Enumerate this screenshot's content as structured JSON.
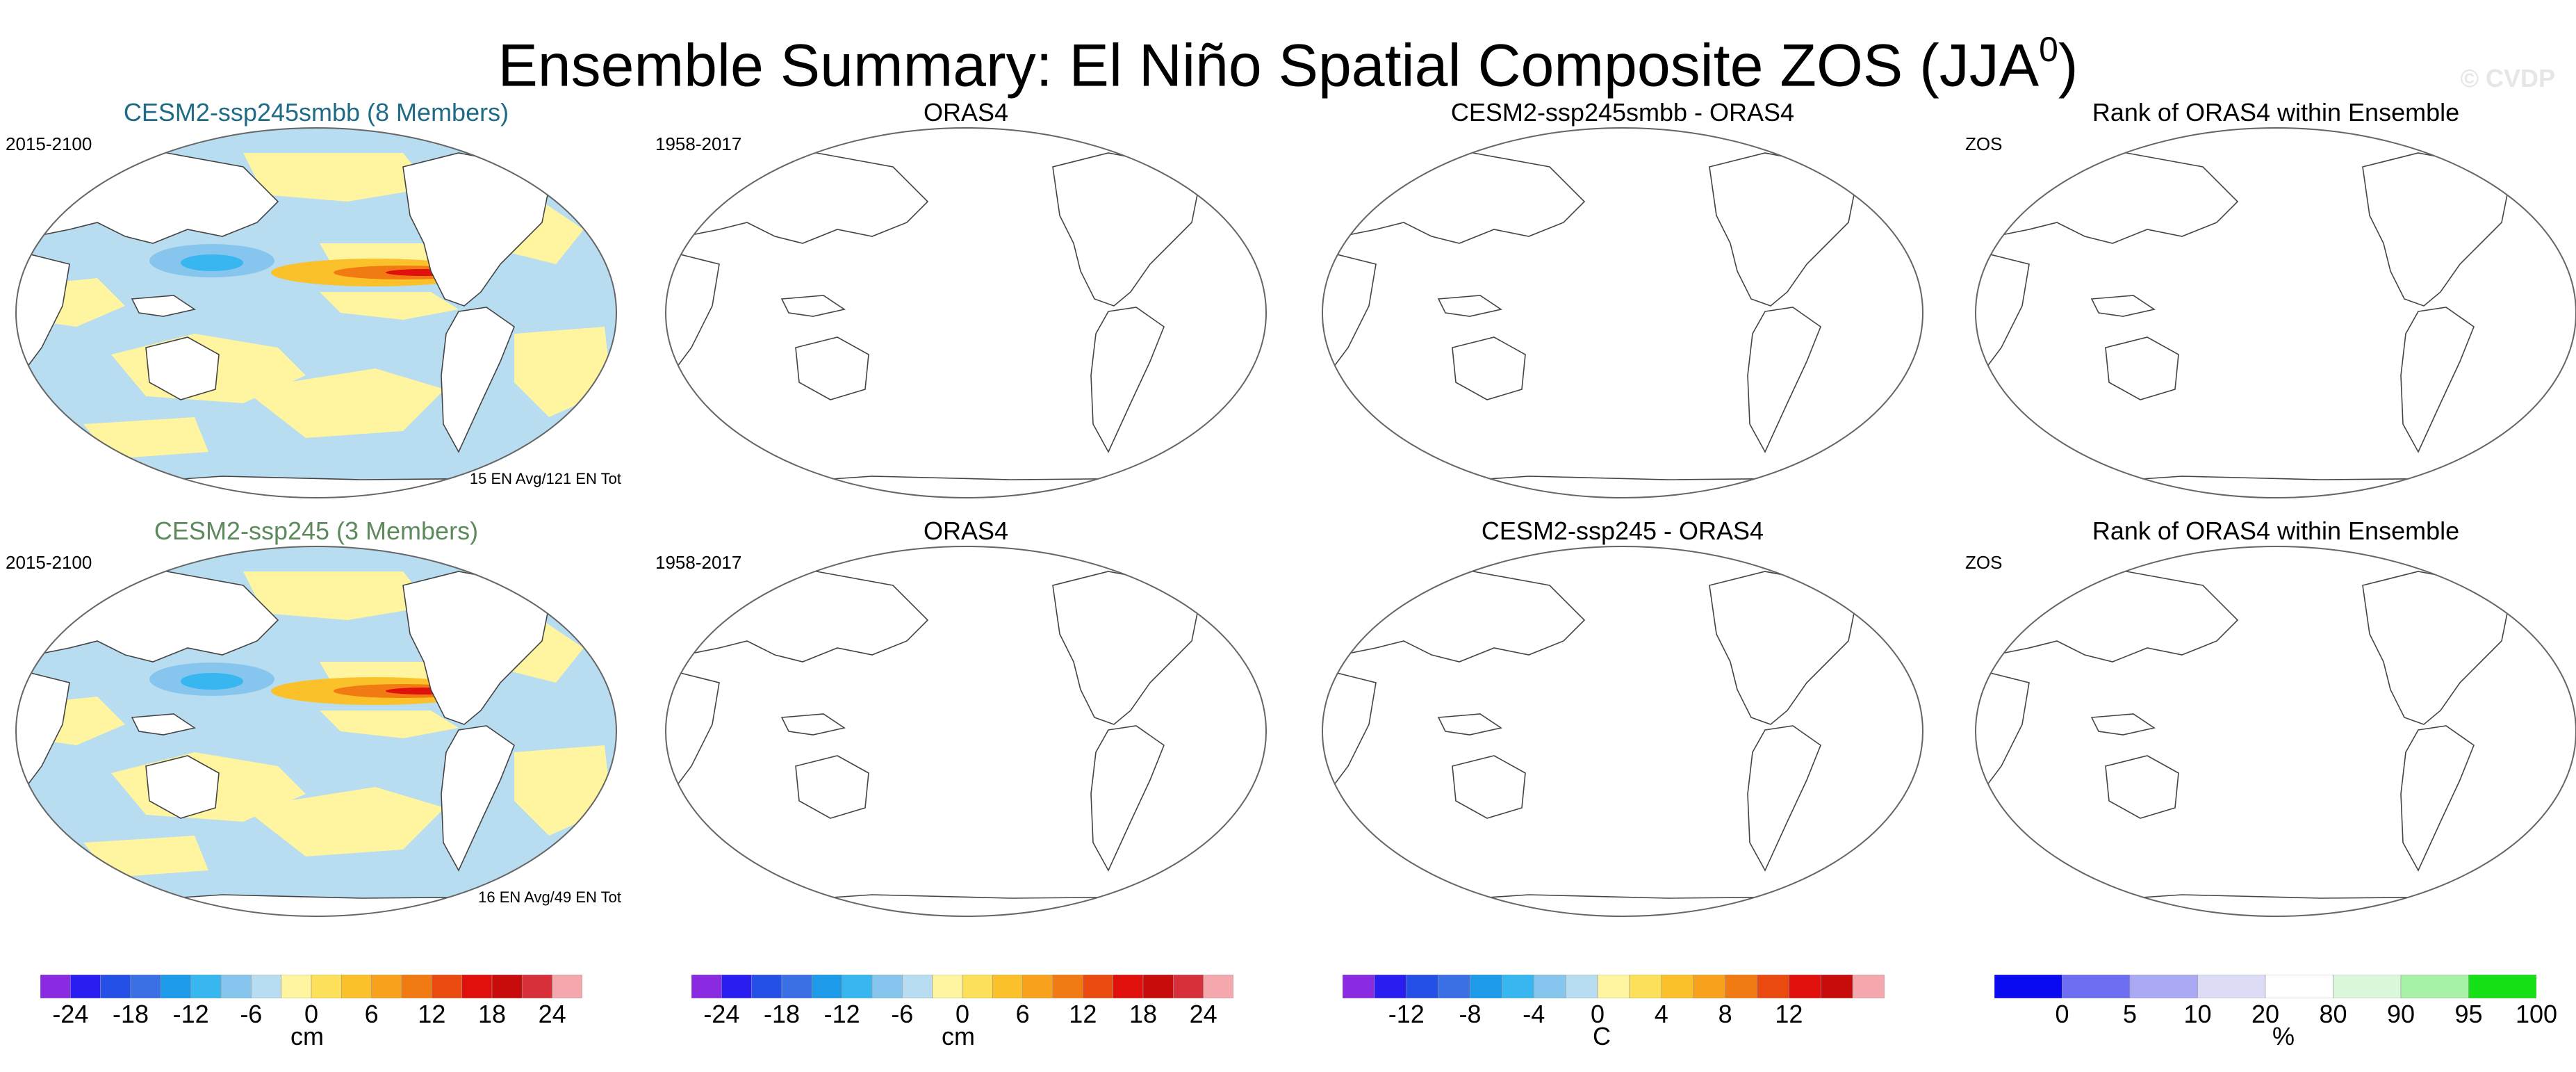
{
  "title": {
    "main": "Ensemble Summary: El Niño Spatial Composite ZOS (JJA",
    "sup": "0",
    "close": ")"
  },
  "watermark": "© CVDP",
  "rows": [
    {
      "panels": [
        {
          "title": "CESM2-ssp245smbb (8 Members)",
          "title_color": "#1f6b86",
          "left_label": "2015-2100",
          "bottom_label": "15 EN Avg/121 EN Tot",
          "filled": true
        },
        {
          "title": "ORAS4",
          "title_color": "#000000",
          "left_label": "1958-2017",
          "bottom_label": "",
          "filled": false
        },
        {
          "title": "CESM2-ssp245smbb - ORAS4",
          "title_color": "#000000",
          "left_label": "",
          "bottom_label": "",
          "filled": false
        },
        {
          "title": "Rank of ORAS4 within Ensemble",
          "title_color": "#000000",
          "left_label": "ZOS",
          "bottom_label": "",
          "filled": false
        }
      ]
    },
    {
      "panels": [
        {
          "title": "CESM2-ssp245 (3 Members)",
          "title_color": "#5d8a5d",
          "left_label": "2015-2100",
          "bottom_label": "16 EN Avg/49 EN Tot",
          "filled": true
        },
        {
          "title": "ORAS4",
          "title_color": "#000000",
          "left_label": "1958-2017",
          "bottom_label": "",
          "filled": false
        },
        {
          "title": "CESM2-ssp245 - ORAS4",
          "title_color": "#000000",
          "left_label": "",
          "bottom_label": "",
          "filled": false
        },
        {
          "title": "Rank of ORAS4 within Ensemble",
          "title_color": "#000000",
          "left_label": "ZOS",
          "bottom_label": "",
          "filled": false
        }
      ]
    }
  ],
  "colorbars": [
    {
      "unit": "cm",
      "ticks": [
        "-24",
        "-18",
        "-12",
        "-6",
        "0",
        "6",
        "12",
        "18",
        "24"
      ],
      "colors": [
        "#8a2be2",
        "#2a1df0",
        "#2450e8",
        "#3b6fe6",
        "#1e9be8",
        "#38b6f0",
        "#86c6ee",
        "#b8dcf0",
        "#fff4a0",
        "#fde05a",
        "#fbc12a",
        "#f7a11c",
        "#f27a12",
        "#ea4a10",
        "#e0100c",
        "#c80c0c",
        "#d8303a",
        "#f4a8ae"
      ]
    },
    {
      "unit": "cm",
      "ticks": [
        "-24",
        "-18",
        "-12",
        "-6",
        "0",
        "6",
        "12",
        "18",
        "24"
      ],
      "colors": [
        "#8a2be2",
        "#2a1df0",
        "#2450e8",
        "#3b6fe6",
        "#1e9be8",
        "#38b6f0",
        "#86c6ee",
        "#b8dcf0",
        "#fff4a0",
        "#fde05a",
        "#fbc12a",
        "#f7a11c",
        "#f27a12",
        "#ea4a10",
        "#e0100c",
        "#c80c0c",
        "#d8303a",
        "#f4a8ae"
      ]
    },
    {
      "unit": "C",
      "ticks": [
        "-12",
        "-8",
        "-4",
        "0",
        "4",
        "8",
        "12"
      ],
      "colors": [
        "#8a2be2",
        "#2a1df0",
        "#2450e8",
        "#3b6fe6",
        "#1e9be8",
        "#38b6f0",
        "#86c6ee",
        "#b8dcf0",
        "#fff4a0",
        "#fde05a",
        "#fbc12a",
        "#f7a11c",
        "#f27a12",
        "#ea4a10",
        "#e0100c",
        "#c80c0c",
        "#f4a8ae"
      ]
    },
    {
      "unit": "%",
      "ticks": [
        "0",
        "5",
        "10",
        "20",
        "80",
        "90",
        "95",
        "100"
      ],
      "colors": [
        "#0a0af0",
        "#6e6ef2",
        "#aaaaf4",
        "#dcdcf6",
        "#ffffff",
        "#dcf8dc",
        "#a8f2a8",
        "#16e016"
      ]
    }
  ]
}
